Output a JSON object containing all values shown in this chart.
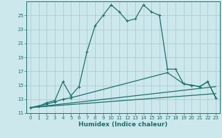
{
  "title": "",
  "xlabel": "Humidex (Indice chaleur)",
  "bg_color": "#cce8ec",
  "grid_color": "#aaccd4",
  "line_color": "#1a6e6a",
  "xlim": [
    -0.5,
    23.5
  ],
  "ylim": [
    11,
    27
  ],
  "yticks": [
    11,
    13,
    15,
    17,
    19,
    21,
    23,
    25
  ],
  "xticks": [
    0,
    1,
    2,
    3,
    4,
    5,
    6,
    7,
    8,
    9,
    10,
    11,
    12,
    13,
    14,
    15,
    16,
    17,
    18,
    19,
    20,
    21,
    22,
    23
  ],
  "line1_x": [
    0,
    1,
    2,
    3,
    4,
    5,
    6,
    7,
    8,
    9,
    10,
    11,
    12,
    13,
    14,
    15,
    16,
    17,
    18,
    19,
    20,
    21,
    22,
    23
  ],
  "line1_y": [
    11.8,
    12.0,
    12.5,
    12.8,
    15.5,
    13.5,
    14.8,
    19.8,
    23.5,
    25.0,
    26.5,
    25.5,
    24.2,
    24.5,
    26.5,
    25.5,
    25.0,
    17.3,
    17.3,
    15.2,
    15.0,
    14.8,
    15.5,
    13.2
  ],
  "line2_x": [
    0,
    2,
    3,
    4,
    5,
    17,
    19,
    20,
    21,
    22,
    23
  ],
  "line2_y": [
    11.8,
    12.3,
    12.6,
    13.0,
    13.2,
    16.8,
    15.2,
    15.0,
    14.8,
    15.5,
    13.2
  ],
  "line3_x": [
    0,
    23
  ],
  "line3_y": [
    11.8,
    14.8
  ],
  "line4_x": [
    0,
    23
  ],
  "line4_y": [
    11.8,
    13.8
  ]
}
